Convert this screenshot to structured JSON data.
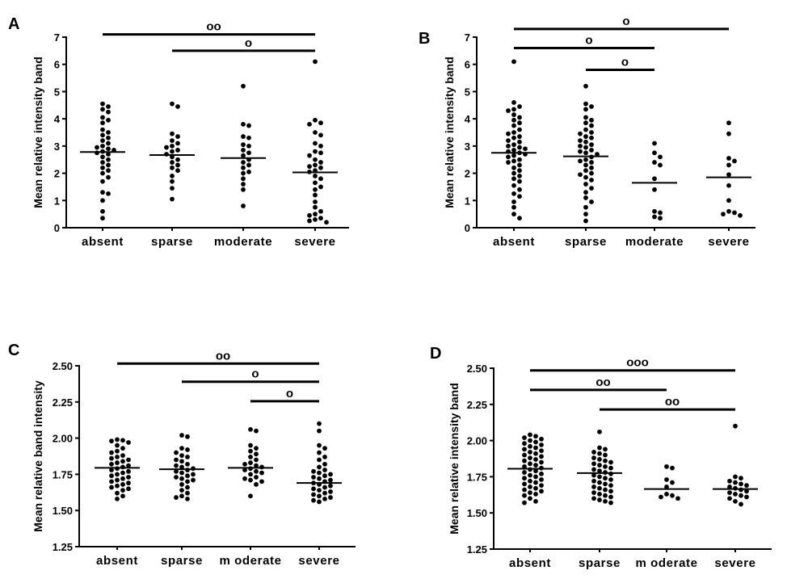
{
  "colors": {
    "ink": "#000000",
    "background": "#ffffff"
  },
  "chart_data": [
    {
      "panel": "A",
      "type": "scatter",
      "title": "",
      "xlabel": "",
      "ylabel": "Mean relative intensity band",
      "categories": [
        "absent",
        "sparse",
        "moderate",
        "severe"
      ],
      "ylim": [
        0,
        7
      ],
      "yticks": [
        "0",
        "1",
        "2",
        "3",
        "4",
        "5",
        "6",
        "7"
      ],
      "ytick_values": [
        0,
        1,
        2,
        3,
        4,
        5,
        6,
        7
      ],
      "grid": false,
      "legend": "none",
      "means": [
        2.78,
        2.67,
        2.56,
        2.03
      ],
      "series": [
        {
          "category": "absent",
          "values": [
            4.55,
            4.45,
            4.35,
            4.25,
            4.05,
            3.95,
            3.85,
            3.6,
            3.5,
            3.4,
            3.3,
            3.2,
            3.1,
            3.0,
            2.95,
            2.9,
            2.85,
            2.8,
            2.75,
            2.7,
            2.6,
            2.5,
            2.4,
            2.3,
            2.2,
            2.1,
            2.0,
            1.85,
            1.7,
            1.3,
            1.25,
            1.0,
            0.6,
            0.35
          ]
        },
        {
          "category": "sparse",
          "values": [
            4.55,
            4.45,
            3.45,
            3.35,
            3.2,
            3.1,
            3.0,
            2.95,
            2.85,
            2.8,
            2.7,
            2.6,
            2.5,
            2.4,
            2.3,
            2.2,
            2.1,
            1.9,
            1.7,
            1.45,
            1.05
          ]
        },
        {
          "category": "moderate",
          "values": [
            5.2,
            3.8,
            3.75,
            3.35,
            3.3,
            3.05,
            3.0,
            2.85,
            2.75,
            2.65,
            2.5,
            2.4,
            2.3,
            2.2,
            2.05,
            2.0,
            1.8,
            1.6,
            1.4,
            0.8
          ]
        },
        {
          "category": "severe",
          "values": [
            6.1,
            3.95,
            3.85,
            3.8,
            3.5,
            3.4,
            3.1,
            3.0,
            2.8,
            2.75,
            2.65,
            2.5,
            2.4,
            2.3,
            2.25,
            2.2,
            2.1,
            2.05,
            1.9,
            1.8,
            1.65,
            1.5,
            1.4,
            1.2,
            0.95,
            0.75,
            0.6,
            0.5,
            0.45,
            0.35,
            0.3,
            0.25,
            0.2
          ]
        }
      ],
      "annotations": [
        {
          "label": "oo",
          "from": "absent",
          "to": "severe",
          "y": 7.1
        },
        {
          "label": "o",
          "from": "sparse",
          "to": "severe",
          "y": 6.5
        }
      ]
    },
    {
      "panel": "B",
      "type": "scatter",
      "title": "",
      "xlabel": "",
      "ylabel": "Mean relative intensity band",
      "categories": [
        "absent",
        "sparse",
        "moderate",
        "severe"
      ],
      "ylim": [
        0,
        7
      ],
      "yticks": [
        "0",
        "1",
        "2",
        "3",
        "4",
        "5",
        "6",
        "7"
      ],
      "ytick_values": [
        0,
        1,
        2,
        3,
        4,
        5,
        6,
        7
      ],
      "grid": false,
      "legend": "none",
      "means": [
        2.75,
        2.62,
        1.65,
        1.85
      ],
      "series": [
        {
          "category": "absent",
          "values": [
            6.1,
            4.6,
            4.45,
            4.35,
            4.3,
            4.15,
            4.05,
            3.95,
            3.85,
            3.75,
            3.6,
            3.5,
            3.45,
            3.35,
            3.3,
            3.2,
            3.15,
            3.05,
            3.0,
            2.95,
            2.9,
            2.85,
            2.8,
            2.75,
            2.7,
            2.65,
            2.6,
            2.5,
            2.45,
            2.4,
            2.3,
            2.2,
            2.1,
            2.0,
            1.9,
            1.8,
            1.7,
            1.55,
            1.4,
            1.25,
            1.15,
            0.95,
            0.75,
            0.5,
            0.35
          ]
        },
        {
          "category": "sparse",
          "values": [
            5.2,
            4.55,
            4.45,
            4.35,
            4.05,
            3.95,
            3.85,
            3.75,
            3.6,
            3.5,
            3.45,
            3.35,
            3.3,
            3.2,
            3.15,
            3.05,
            3.0,
            2.95,
            2.85,
            2.8,
            2.75,
            2.7,
            2.6,
            2.5,
            2.45,
            2.4,
            2.3,
            2.2,
            2.1,
            2.0,
            1.95,
            1.85,
            1.75,
            1.6,
            1.45,
            1.3,
            1.1,
            0.95,
            0.75,
            0.5,
            0.25
          ]
        },
        {
          "category": "moderate",
          "values": [
            3.1,
            2.75,
            2.6,
            2.4,
            2.3,
            1.8,
            1.4,
            0.6,
            0.55,
            0.4,
            0.35
          ]
        },
        {
          "category": "severe",
          "values": [
            3.85,
            3.45,
            2.55,
            2.45,
            2.3,
            1.95,
            1.55,
            1.0,
            0.6,
            0.55,
            0.5,
            0.45
          ]
        }
      ],
      "annotations": [
        {
          "label": "o",
          "from": "absent",
          "to": "severe",
          "y": 7.3
        },
        {
          "label": "o",
          "from": "absent",
          "to": "moderate",
          "y": 6.6
        },
        {
          "label": "o",
          "from": "sparse",
          "to": "moderate",
          "y": 5.8
        }
      ]
    },
    {
      "panel": "C",
      "type": "scatter",
      "title": "",
      "xlabel": "",
      "ylabel": "Mean relative band intensity",
      "categories": [
        "absent",
        "sparse",
        "m oderate",
        "severe"
      ],
      "ylim": [
        1.25,
        2.5
      ],
      "yticks": [
        "1.25",
        "1.50",
        "1.75",
        "2.00",
        "2.25",
        "2.50"
      ],
      "ytick_values": [
        1.25,
        1.5,
        1.75,
        2.0,
        2.25,
        2.5
      ],
      "grid": false,
      "legend": "none",
      "means": [
        1.795,
        1.785,
        1.795,
        1.69
      ],
      "series": [
        {
          "category": "absent",
          "values": [
            1.99,
            1.985,
            1.98,
            1.97,
            1.95,
            1.93,
            1.91,
            1.9,
            1.88,
            1.87,
            1.86,
            1.85,
            1.84,
            1.83,
            1.82,
            1.81,
            1.8,
            1.79,
            1.78,
            1.77,
            1.76,
            1.75,
            1.74,
            1.73,
            1.72,
            1.71,
            1.7,
            1.69,
            1.68,
            1.67,
            1.66,
            1.65,
            1.64,
            1.62,
            1.6,
            1.58
          ]
        },
        {
          "category": "sparse",
          "values": [
            2.02,
            2.01,
            1.93,
            1.92,
            1.9,
            1.88,
            1.87,
            1.85,
            1.84,
            1.82,
            1.81,
            1.8,
            1.79,
            1.78,
            1.77,
            1.76,
            1.75,
            1.74,
            1.73,
            1.72,
            1.71,
            1.7,
            1.68,
            1.66,
            1.64,
            1.62,
            1.6,
            1.59,
            1.58
          ]
        },
        {
          "category": "m oderate",
          "values": [
            2.06,
            2.05,
            1.95,
            1.93,
            1.91,
            1.89,
            1.87,
            1.85,
            1.83,
            1.82,
            1.81,
            1.8,
            1.79,
            1.78,
            1.77,
            1.76,
            1.75,
            1.73,
            1.72,
            1.71,
            1.7,
            1.68,
            1.6
          ]
        },
        {
          "category": "severe",
          "values": [
            2.1,
            2.05,
            1.95,
            1.93,
            1.9,
            1.87,
            1.85,
            1.82,
            1.8,
            1.78,
            1.77,
            1.76,
            1.75,
            1.74,
            1.73,
            1.72,
            1.71,
            1.7,
            1.69,
            1.68,
            1.67,
            1.66,
            1.65,
            1.64,
            1.63,
            1.62,
            1.61,
            1.6,
            1.59,
            1.58,
            1.57,
            1.56
          ]
        }
      ],
      "annotations": [
        {
          "label": "oo",
          "from": "absent",
          "to": "severe",
          "y": 2.515
        },
        {
          "label": "o",
          "from": "sparse",
          "to": "severe",
          "y": 2.39
        },
        {
          "label": "o",
          "from": "m oderate",
          "to": "severe",
          "y": 2.255
        }
      ]
    },
    {
      "panel": "D",
      "type": "scatter",
      "title": "",
      "xlabel": "",
      "ylabel": "Mean relative intensity band",
      "categories": [
        "absent",
        "sparse",
        "m oderate",
        "severe"
      ],
      "ylim": [
        1.25,
        2.5
      ],
      "yticks": [
        "1.25",
        "1.50",
        "1.75",
        "2.00",
        "2.25",
        "2.50"
      ],
      "ytick_values": [
        1.25,
        1.5,
        1.75,
        2.0,
        2.25,
        2.5
      ],
      "grid": false,
      "legend": "none",
      "means": [
        1.805,
        1.775,
        1.665,
        1.665
      ],
      "series": [
        {
          "category": "absent",
          "values": [
            2.04,
            2.03,
            2.02,
            2.01,
            2.0,
            1.99,
            1.98,
            1.97,
            1.96,
            1.95,
            1.94,
            1.93,
            1.92,
            1.91,
            1.9,
            1.89,
            1.88,
            1.87,
            1.86,
            1.85,
            1.84,
            1.83,
            1.82,
            1.81,
            1.8,
            1.79,
            1.78,
            1.77,
            1.76,
            1.75,
            1.74,
            1.73,
            1.72,
            1.71,
            1.7,
            1.69,
            1.68,
            1.67,
            1.66,
            1.65,
            1.64,
            1.63,
            1.62,
            1.6,
            1.58,
            1.57
          ]
        },
        {
          "category": "sparse",
          "values": [
            2.06,
            1.95,
            1.94,
            1.92,
            1.91,
            1.9,
            1.88,
            1.87,
            1.86,
            1.85,
            1.84,
            1.83,
            1.82,
            1.81,
            1.8,
            1.79,
            1.78,
            1.77,
            1.76,
            1.75,
            1.74,
            1.73,
            1.72,
            1.71,
            1.7,
            1.69,
            1.68,
            1.67,
            1.66,
            1.65,
            1.64,
            1.63,
            1.62,
            1.61,
            1.6,
            1.59,
            1.58,
            1.57
          ]
        },
        {
          "category": "m oderate",
          "values": [
            1.82,
            1.81,
            1.73,
            1.71,
            1.68,
            1.63,
            1.62,
            1.61,
            1.6
          ]
        },
        {
          "category": "severe",
          "values": [
            2.1,
            1.75,
            1.74,
            1.72,
            1.71,
            1.7,
            1.69,
            1.68,
            1.67,
            1.66,
            1.65,
            1.64,
            1.63,
            1.62,
            1.61,
            1.6,
            1.58,
            1.56
          ]
        }
      ],
      "annotations": [
        {
          "label": "ooo",
          "from": "absent",
          "to": "severe",
          "y": 2.485
        },
        {
          "label": "oo",
          "from": "absent",
          "to": "m oderate",
          "y": 2.35
        },
        {
          "label": "oo",
          "from": "sparse",
          "to": "severe",
          "y": 2.215
        }
      ]
    }
  ]
}
